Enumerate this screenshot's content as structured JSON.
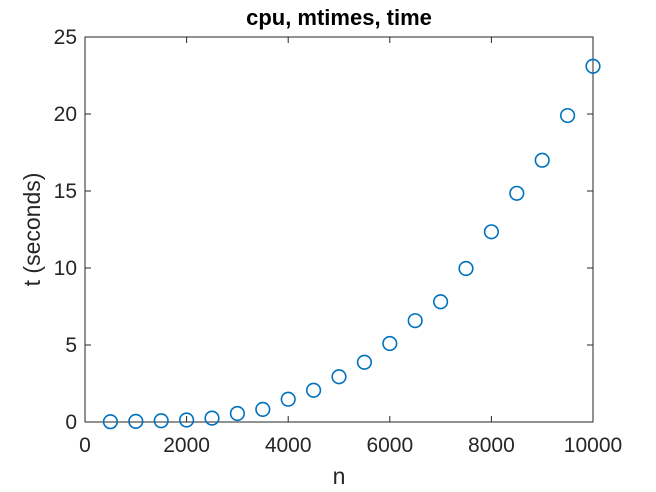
{
  "figure": {
    "title": "cpu, mtimes, time",
    "xlabel": "n",
    "ylabel": "t (seconds)"
  },
  "chart_data": {
    "type": "scatter",
    "title": "cpu, mtimes, time",
    "xlabel": "n",
    "ylabel": "t (seconds)",
    "x": [
      500,
      1000,
      1500,
      2000,
      2500,
      3000,
      3500,
      4000,
      4500,
      5000,
      5500,
      6000,
      6500,
      7000,
      7500,
      8000,
      8500,
      9000,
      9500,
      10000
    ],
    "y": [
      0.02,
      0.04,
      0.08,
      0.13,
      0.25,
      0.55,
      0.82,
      1.48,
      2.06,
      2.94,
      3.88,
      5.1,
      6.58,
      7.81,
      9.97,
      12.35,
      14.85,
      17.0,
      19.9,
      23.1
    ],
    "xlim": [
      0,
      10000
    ],
    "ylim": [
      0,
      25
    ],
    "xticks": [
      0,
      2000,
      4000,
      6000,
      8000,
      10000
    ],
    "yticks": [
      0,
      5,
      10,
      15,
      20,
      25
    ],
    "xtick_labels": [
      "0",
      "2000",
      "4000",
      "6000",
      "8000",
      "10000"
    ],
    "ytick_labels": [
      "0",
      "5",
      "10",
      "15",
      "20",
      "25"
    ],
    "grid": false,
    "box": true,
    "legend": "none",
    "marker": {
      "shape": "circle",
      "edge_color": "#0072BD",
      "fill": "none"
    }
  },
  "colors": {
    "marker": "#0072BD",
    "axis": "#262626",
    "title": "#000000",
    "background": "#ffffff"
  }
}
